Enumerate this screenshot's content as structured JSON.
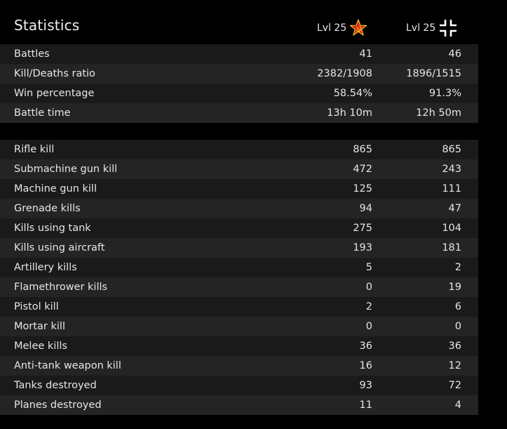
{
  "header": {
    "title": "Statistics",
    "soviet": {
      "level": "Lvl 25",
      "icon": "red-star-hammer-sickle-icon",
      "star_color": "#d11f1f",
      "emblem_color": "#f5c21a"
    },
    "german": {
      "level": "Lvl 25",
      "icon": "balkenkreuz-icon",
      "color": "#ffffff"
    }
  },
  "summary": [
    {
      "label": "Battles",
      "soviet": "41",
      "german": "46"
    },
    {
      "label": "Kill/Deaths ratio",
      "soviet": "2382/1908",
      "german": "1896/1515"
    },
    {
      "label": "Win percentage",
      "soviet": "58.54%",
      "german": "91.3%"
    },
    {
      "label": "Battle time",
      "soviet": "13h 10m",
      "german": "12h 50m"
    }
  ],
  "kills": [
    {
      "label": "Rifle kill",
      "soviet": "865",
      "german": "865"
    },
    {
      "label": "Submachine gun kill",
      "soviet": "472",
      "german": "243"
    },
    {
      "label": "Machine gun kill",
      "soviet": "125",
      "german": "111"
    },
    {
      "label": "Grenade kills",
      "soviet": "94",
      "german": "47"
    },
    {
      "label": "Kills using tank",
      "soviet": "275",
      "german": "104"
    },
    {
      "label": "Kills using aircraft",
      "soviet": "193",
      "german": "181"
    },
    {
      "label": "Artillery kills",
      "soviet": "5",
      "german": "2"
    },
    {
      "label": "Flamethrower kills",
      "soviet": "0",
      "german": "19"
    },
    {
      "label": "Pistol kill",
      "soviet": "2",
      "german": "6"
    },
    {
      "label": "Mortar kill",
      "soviet": "0",
      "german": "0"
    },
    {
      "label": "Melee kills",
      "soviet": "36",
      "german": "36"
    },
    {
      "label": "Anti-tank weapon kill",
      "soviet": "16",
      "german": "12"
    },
    {
      "label": "Tanks destroyed",
      "soviet": "93",
      "german": "72"
    },
    {
      "label": "Planes destroyed",
      "soviet": "11",
      "german": "4"
    }
  ]
}
